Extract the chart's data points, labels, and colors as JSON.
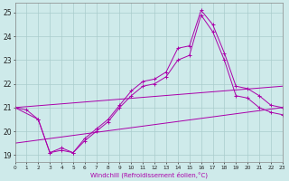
{
  "xlabel": "Windchill (Refroidissement éolien,°C)",
  "bg_color": "#ceeaea",
  "grid_color": "#aacccc",
  "line_color": "#aa00aa",
  "xlim": [
    0,
    23
  ],
  "ylim": [
    18.7,
    25.4
  ],
  "xticks": [
    0,
    1,
    2,
    3,
    4,
    5,
    6,
    7,
    8,
    9,
    10,
    11,
    12,
    13,
    14,
    15,
    16,
    17,
    18,
    19,
    20,
    21,
    22,
    23
  ],
  "yticks": [
    19,
    20,
    21,
    22,
    23,
    24,
    25
  ],
  "lines": [
    {
      "x": [
        0,
        1,
        2,
        3,
        4,
        5,
        6,
        7,
        8,
        9,
        10,
        11,
        12,
        13,
        14,
        15,
        16,
        17,
        18,
        19,
        20,
        21,
        22,
        23
      ],
      "y": [
        21.0,
        20.9,
        20.5,
        19.1,
        19.2,
        19.1,
        19.7,
        20.1,
        20.5,
        21.1,
        21.7,
        22.1,
        22.2,
        22.5,
        23.5,
        23.6,
        25.1,
        24.5,
        23.3,
        21.9,
        21.8,
        21.5,
        21.1,
        21.0
      ],
      "markers": true
    },
    {
      "x": [
        0,
        2,
        3,
        4,
        5,
        6,
        7,
        8,
        9,
        10,
        11,
        12,
        13,
        14,
        15,
        16,
        17,
        18,
        19,
        20,
        21,
        22,
        23
      ],
      "y": [
        21.0,
        20.5,
        19.1,
        19.3,
        19.1,
        19.6,
        20.0,
        20.4,
        21.0,
        21.5,
        21.9,
        22.0,
        22.3,
        23.0,
        23.2,
        24.9,
        24.2,
        23.0,
        21.5,
        21.4,
        21.0,
        20.8,
        20.7
      ],
      "markers": true
    },
    {
      "x": [
        0,
        23
      ],
      "y": [
        21.0,
        21.9
      ],
      "markers": false
    },
    {
      "x": [
        0,
        23
      ],
      "y": [
        19.5,
        21.0
      ],
      "markers": false
    }
  ]
}
